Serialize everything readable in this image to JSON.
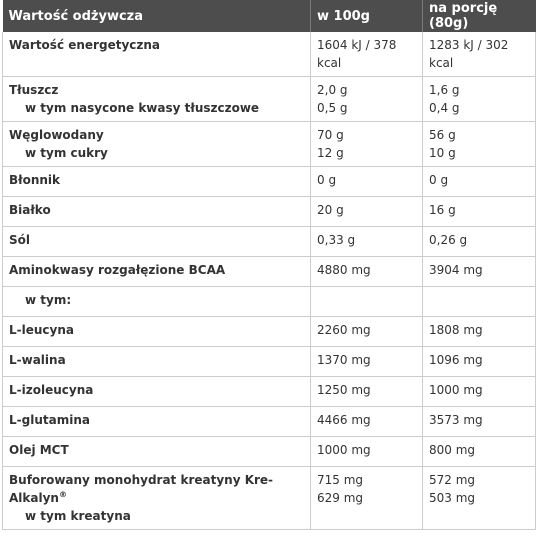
{
  "header": {
    "col1": "Wartość odżywcza",
    "col2": "w 100g",
    "col3": "na porcję (80g)"
  },
  "rows": [
    {
      "name": "Wartość energetyczna",
      "v100": "1604 kJ / 378 kcal",
      "vportion": "1283 kJ / 302 kcal"
    },
    {
      "name": "Tłuszcz",
      "sub": "w tym nasycone kwasy tłuszczowe",
      "v100": "2,0 g",
      "v100_sub": "0,5 g",
      "vportion": "1,6 g",
      "vportion_sub": "0,4 g"
    },
    {
      "name": "Węglowodany",
      "sub": "w tym cukry",
      "v100": "70 g",
      "v100_sub": "12 g",
      "vportion": "56 g",
      "vportion_sub": "10 g"
    },
    {
      "name": "Błonnik",
      "v100": "0 g",
      "vportion": "0 g"
    },
    {
      "name": "Białko",
      "v100": "20 g",
      "vportion": "16 g"
    },
    {
      "name": "Sól",
      "v100": "0,33 g",
      "vportion": "0,26 g"
    },
    {
      "name": "Aminokwasy rozgałęzione BCAA",
      "v100": "4880 mg",
      "vportion": "3904 mg"
    },
    {
      "name": "w tym:",
      "v100": "",
      "vportion": ""
    },
    {
      "name": "L-leucyna",
      "v100": "2260 mg",
      "vportion": "1808 mg"
    },
    {
      "name": "L-walina",
      "v100": "1370 mg",
      "vportion": "1096 mg"
    },
    {
      "name": "L-izoleucyna",
      "v100": "1250 mg",
      "vportion": "1000 mg"
    },
    {
      "name": "L-glutamina",
      "v100": "4466 mg",
      "vportion": "3573 mg"
    },
    {
      "name": "Olej MCT",
      "v100": "1000 mg",
      "vportion": "800 mg"
    },
    {
      "name": "Buforowany monohydrat kreatyny Kre-Alkalyn",
      "name_sup": "®",
      "sub": "w tym kreatyna",
      "v100": "715 mg",
      "v100_sub": "629 mg",
      "vportion": "572 mg",
      "vportion_sub": "503 mg"
    }
  ]
}
